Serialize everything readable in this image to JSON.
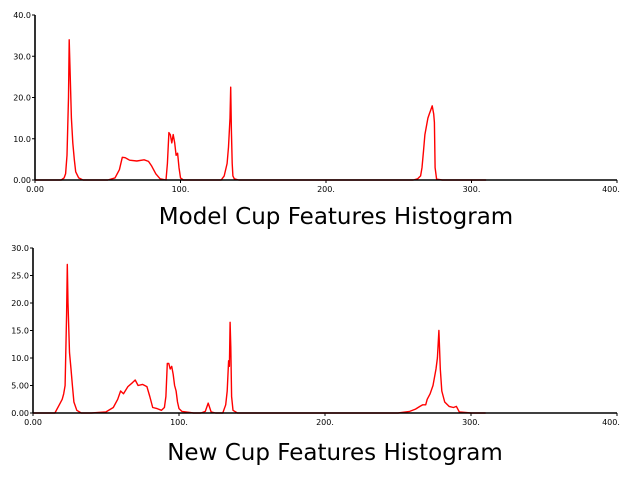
{
  "chart_data": [
    {
      "type": "line",
      "title": "Model Cup Features Histogram",
      "xlabel": "",
      "ylabel": "",
      "xlim": [
        0,
        400
      ],
      "ylim": [
        0,
        40
      ],
      "x_ticks": [
        0,
        100,
        200,
        300,
        400
      ],
      "x_tick_labels": [
        "0.00",
        "100.",
        "200.",
        "300.",
        "400."
      ],
      "y_ticks": [
        0,
        10,
        20,
        30,
        40
      ],
      "y_tick_labels": [
        "0.00",
        "10.0",
        "20.0",
        "30.0",
        "40.0"
      ],
      "grid": false,
      "color": "#ff0000",
      "series": [
        {
          "x": [
            0,
            18,
            20,
            21,
            22,
            23,
            23.5,
            24,
            25,
            26,
            27,
            28,
            30,
            33,
            40,
            50,
            55,
            58,
            60,
            62,
            65,
            70,
            75,
            78,
            80,
            83,
            86,
            90,
            91,
            92,
            93,
            94,
            95,
            96,
            97,
            98,
            99,
            100,
            102,
            110,
            120,
            128,
            130,
            132,
            133,
            134,
            134.5,
            135,
            135.5,
            136,
            137,
            140,
            150,
            200,
            250,
            260,
            263,
            265,
            266,
            267,
            268,
            269,
            270,
            271,
            272,
            273,
            274,
            274.5,
            275,
            276,
            280,
            290,
            300,
            310
          ],
          "y": [
            0,
            0,
            0.5,
            1.5,
            6,
            20,
            34,
            28,
            15,
            9,
            5,
            2,
            0.5,
            0,
            0,
            0,
            0.5,
            2.5,
            5.5,
            5.4,
            4.8,
            4.6,
            4.9,
            4.5,
            3.5,
            1.5,
            0.3,
            0,
            4,
            11.5,
            11,
            9,
            11,
            9,
            6,
            6.5,
            3,
            0.5,
            0,
            0,
            0,
            0,
            1,
            4,
            8,
            15,
            22.5,
            12,
            4,
            1,
            0.3,
            0,
            0,
            0,
            0,
            0,
            0.3,
            1,
            3,
            7,
            11,
            13,
            15,
            16,
            17,
            18,
            16,
            14,
            3,
            0.2,
            0,
            0,
            0,
            0
          ]
        }
      ]
    },
    {
      "type": "line",
      "title": "New Cup Features Histogram",
      "xlabel": "",
      "ylabel": "",
      "xlim": [
        0,
        400
      ],
      "ylim": [
        0,
        30
      ],
      "x_ticks": [
        0,
        100,
        200,
        300,
        400
      ],
      "x_tick_labels": [
        "0.00",
        "100.",
        "200.",
        "300.",
        "400."
      ],
      "y_ticks": [
        0,
        5,
        10,
        15,
        20,
        25,
        30
      ],
      "y_tick_labels": [
        "0.00",
        "5.00",
        "10.0",
        "15.0",
        "20.0",
        "25.0",
        "30.0"
      ],
      "grid": false,
      "color": "#ff0000",
      "series": [
        {
          "x": [
            0,
            15,
            18,
            20,
            21,
            22,
            23,
            23.5,
            24,
            25,
            26,
            27,
            28,
            30,
            33,
            40,
            50,
            55,
            58,
            60,
            62,
            65,
            68,
            70,
            72,
            75,
            78,
            80,
            82,
            85,
            88,
            90,
            91,
            92,
            93,
            94,
            95,
            96,
            97,
            98,
            99,
            100,
            102,
            110,
            115,
            118,
            120,
            122,
            125,
            130,
            132,
            133,
            134,
            134.5,
            135,
            135.5,
            136,
            137,
            140,
            150,
            200,
            250,
            258,
            262,
            265,
            267,
            269,
            270,
            272,
            274,
            276,
            277,
            278,
            279,
            280,
            282,
            285,
            288,
            290,
            292,
            300,
            310
          ],
          "y": [
            0,
            0,
            1.5,
            2.5,
            3.5,
            5,
            18,
            27,
            20,
            11,
            8,
            5,
            2,
            0.5,
            0,
            0,
            0.2,
            1,
            2.5,
            4,
            3.5,
            4.8,
            5.5,
            6,
            5,
            5.2,
            4.8,
            3,
            1,
            0.8,
            0.5,
            1,
            3,
            9,
            9,
            8,
            8.5,
            7,
            5,
            4,
            2,
            0.8,
            0.3,
            0,
            0,
            0.3,
            1.8,
            0.2,
            0,
            0,
            1.5,
            4,
            9.5,
            8.5,
            16.5,
            12,
            3,
            0.5,
            0,
            0,
            0,
            0,
            0.3,
            0.7,
            1.2,
            1.5,
            1.5,
            2.5,
            3.5,
            5,
            8,
            10,
            15,
            8,
            4,
            2,
            1.2,
            1,
            1.2,
            0.2,
            0,
            0
          ]
        }
      ]
    }
  ]
}
